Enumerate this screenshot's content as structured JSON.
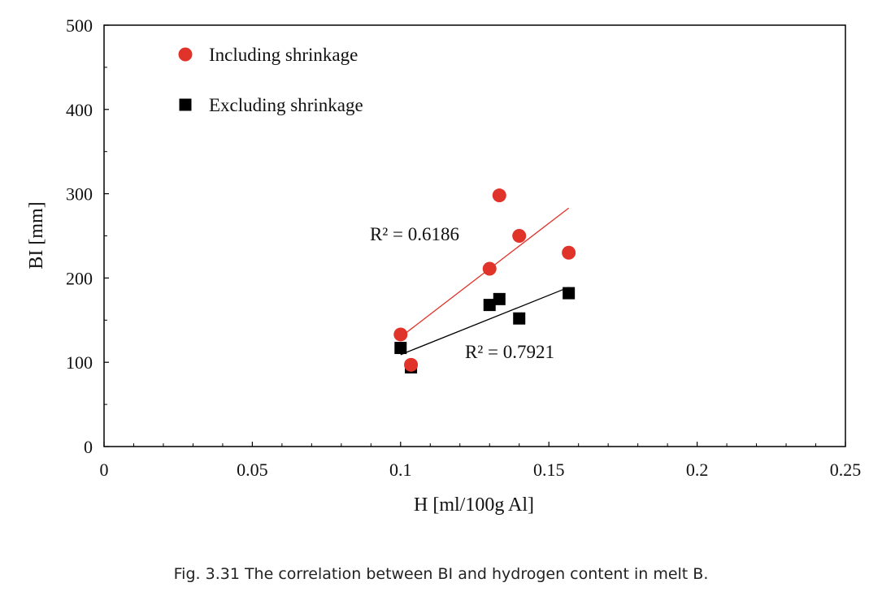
{
  "caption": "Fig. 3.31 The correlation between BI and hydrogen content in melt B.",
  "chart_data": {
    "type": "scatter",
    "xlabel": "H [ml/100g Al]",
    "ylabel": "BI [mm]",
    "xlim": [
      0,
      0.25
    ],
    "ylim": [
      0,
      500
    ],
    "x_ticks": [
      "0",
      "0.05",
      "0.1",
      "0.15",
      "0.2",
      "0.25"
    ],
    "y_ticks": [
      "0",
      "100",
      "200",
      "300",
      "400",
      "500"
    ],
    "x_tick_values": [
      0,
      0.05,
      0.1,
      0.15,
      0.2,
      0.25
    ],
    "y_tick_values": [
      0,
      100,
      200,
      300,
      400,
      500
    ],
    "grid": false,
    "legend_position": "top-left",
    "series": [
      {
        "name": "Including shrinkage",
        "marker": "circle",
        "color": "#e0332a",
        "points": [
          [
            0.1,
            133
          ],
          [
            0.1035,
            97
          ],
          [
            0.13,
            211
          ],
          [
            0.1333,
            298
          ],
          [
            0.14,
            250
          ],
          [
            0.1567,
            230
          ]
        ],
        "trendline": {
          "x": [
            0.1,
            0.1567
          ],
          "y": [
            130,
            283
          ]
        },
        "r2_label": "R² = 0.6186"
      },
      {
        "name": "Excluding shrinkage",
        "marker": "square",
        "color": "#000000",
        "points": [
          [
            0.1,
            117
          ],
          [
            0.1035,
            94
          ],
          [
            0.13,
            168
          ],
          [
            0.1333,
            175
          ],
          [
            0.14,
            152
          ],
          [
            0.1567,
            182
          ]
        ],
        "trendline": {
          "x": [
            0.1,
            0.1567
          ],
          "y": [
            109,
            189
          ]
        },
        "r2_label": "R² = 0.7921"
      }
    ]
  }
}
